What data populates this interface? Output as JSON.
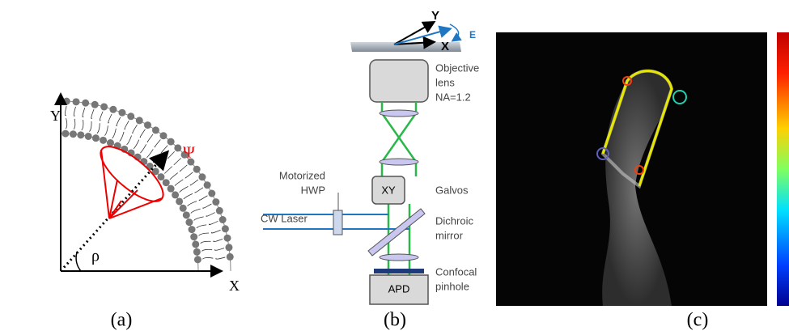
{
  "panel_a": {
    "y_axis": "Y",
    "x_axis": "X",
    "cone_angle": "Ψ",
    "tilt_angle": "ρ",
    "caption": "(a)"
  },
  "panel_b": {
    "sample_y": "Y",
    "sample_x": "X",
    "polarization": "E",
    "objective": [
      "Objective",
      "lens",
      "NA=1.2"
    ],
    "scanner_box": "XY",
    "scanner": "Galvos",
    "hwp": [
      "Motorized",
      "HWP"
    ],
    "laser": "CW Laser",
    "dichroic": [
      "Dichroic",
      "mirror"
    ],
    "pinhole": [
      "Confocal",
      "pinhole"
    ],
    "detector": "APD",
    "caption": "(b)"
  },
  "panel_c": {
    "caption": "(c)"
  }
}
